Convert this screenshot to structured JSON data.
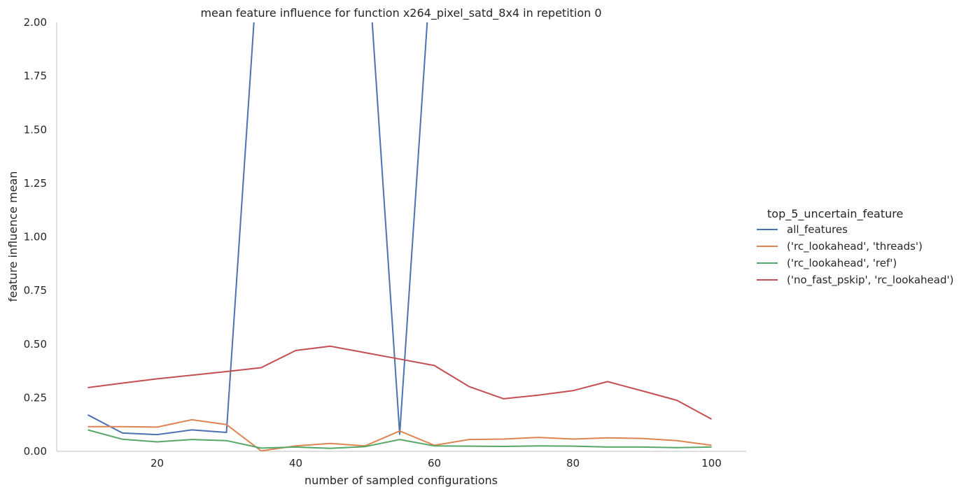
{
  "chart_data": {
    "type": "line",
    "title": "mean feature influence for function x264_pixel_satd_8x4 in repetition 0",
    "xlabel": "number of sampled configurations",
    "ylabel": "feature influence mean",
    "xlim": [
      5.5,
      105
    ],
    "ylim": [
      0,
      2
    ],
    "xticks": [
      20,
      40,
      60,
      80,
      100
    ],
    "yticks": [
      "0.00",
      "0.25",
      "0.50",
      "0.75",
      "1.00",
      "1.25",
      "1.50",
      "1.75",
      "2.00"
    ],
    "grid": false,
    "legend": {
      "title": "top_5_uncertain_feature",
      "placement": "right"
    },
    "x": [
      10,
      15,
      20,
      25,
      30,
      35,
      40,
      45,
      50,
      55,
      60,
      65,
      70,
      75,
      80,
      85,
      90,
      95,
      100
    ],
    "series": [
      {
        "name": "all_features",
        "color": "#4c72b0",
        "values": [
          0.17,
          0.085,
          0.078,
          0.1,
          0.088,
          2.5,
          null,
          null,
          2.5,
          0.08,
          2.5,
          null,
          null,
          null,
          null,
          null,
          null,
          null,
          null
        ]
      },
      {
        "name": "('rc_lookahead', 'threads')",
        "color": "#dd8452",
        "values": [
          0.115,
          0.115,
          0.113,
          0.147,
          0.125,
          0.002,
          0.025,
          0.037,
          0.025,
          0.095,
          0.028,
          0.055,
          0.057,
          0.065,
          0.057,
          0.063,
          0.06,
          0.05,
          0.028
        ]
      },
      {
        "name": "('rc_lookahead', 'ref')",
        "color": "#55a868",
        "values": [
          0.1,
          0.056,
          0.044,
          0.055,
          0.05,
          0.015,
          0.02,
          0.014,
          0.022,
          0.055,
          0.025,
          0.024,
          0.023,
          0.025,
          0.024,
          0.02,
          0.02,
          0.017,
          0.02
        ]
      },
      {
        "name": "('no_fast_pskip', 'rc_lookahead')",
        "color": "#c44e52",
        "values": [
          0.297,
          0.318,
          0.338,
          0.355,
          0.372,
          0.39,
          0.47,
          0.49,
          0.46,
          0.43,
          0.4,
          0.302,
          0.245,
          0.262,
          0.283,
          0.325,
          0.282,
          0.238,
          0.15
        ]
      }
    ]
  }
}
